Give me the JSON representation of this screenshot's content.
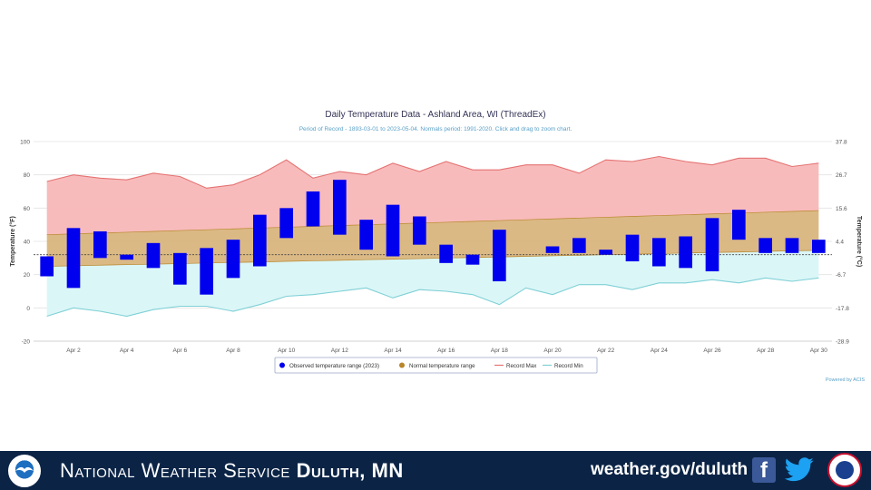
{
  "chart_data": {
    "type": "bar",
    "title": "Daily Temperature Data - Ashland Area, WI (ThreadEx)",
    "subtitle": "Period of Record - 1893-03-01 to 2023-05-04. Normals period: 1991-2020. Click and drag to zoom chart.",
    "ylabel_left": "Temperature (°F)",
    "ylabel_right": "Temperature (°C)",
    "ylim": [
      -20,
      100
    ],
    "yticks_left": [
      "100",
      "80",
      "60",
      "40",
      "20",
      "0",
      "-20"
    ],
    "yticks_right": [
      "37.8",
      "26.7",
      "15.6",
      "4.4",
      "-6.7",
      "-17.8",
      "-28.9"
    ],
    "x_tick_labels": [
      "Apr 2",
      "Apr 4",
      "Apr 6",
      "Apr 8",
      "Apr 10",
      "Apr 12",
      "Apr 14",
      "Apr 16",
      "Apr 18",
      "Apr 20",
      "Apr 22",
      "Apr 24",
      "Apr 26",
      "Apr 28",
      "Apr 30"
    ],
    "x_tick_days": [
      2,
      4,
      6,
      8,
      10,
      12,
      14,
      16,
      18,
      20,
      22,
      24,
      26,
      28,
      30
    ],
    "reference_line": 32,
    "grid": true,
    "legend_position": "bottom-center",
    "days": [
      1,
      2,
      3,
      4,
      5,
      6,
      7,
      8,
      9,
      10,
      11,
      12,
      13,
      14,
      15,
      16,
      17,
      18,
      19,
      20,
      21,
      22,
      23,
      24,
      25,
      26,
      27,
      28,
      29,
      30
    ],
    "series": [
      {
        "name": "Observed temperature range (2023)",
        "kind": "range-bar",
        "color": "#0000ee",
        "low": [
          19,
          12,
          30,
          29,
          24,
          14,
          8,
          18,
          25,
          42,
          49,
          44,
          35,
          31,
          38,
          27,
          26,
          16,
          null,
          33,
          33,
          32,
          28,
          25,
          24,
          22,
          41,
          33,
          33,
          33
        ],
        "high": [
          31,
          48,
          46,
          32,
          39,
          33,
          36,
          41,
          56,
          60,
          70,
          77,
          53,
          62,
          55,
          38,
          32,
          47,
          null,
          37,
          42,
          35,
          44,
          42,
          43,
          54,
          59,
          42,
          42,
          41
        ]
      },
      {
        "name": "Normal temperature range",
        "kind": "band",
        "color": "#c4a46a",
        "low": [
          25,
          25.3,
          25.7,
          26,
          26.3,
          26.6,
          27,
          27.3,
          27.6,
          28,
          28.3,
          28.6,
          29,
          29.3,
          29.6,
          30,
          30.3,
          30.6,
          31,
          31.3,
          31.6,
          32,
          32.3,
          32.6,
          33,
          33.3,
          33.6,
          34,
          34.3,
          34.6
        ],
        "high": [
          44,
          44.5,
          45,
          45.5,
          46,
          46.5,
          47,
          47.5,
          48,
          48.5,
          49,
          49.5,
          50,
          50.5,
          51,
          51.5,
          52,
          52.5,
          53,
          53.5,
          54,
          54.5,
          55,
          55.5,
          56,
          56.5,
          57,
          57.5,
          58,
          58.5
        ]
      },
      {
        "name": "Record Max",
        "kind": "line",
        "color": "#e57373",
        "values": [
          76,
          80,
          78,
          77,
          81,
          79,
          72,
          74,
          80,
          89,
          78,
          82,
          80,
          87,
          82,
          88,
          83,
          83,
          86,
          86,
          81,
          89,
          88,
          91,
          88,
          86,
          90,
          90,
          85,
          87
        ]
      },
      {
        "name": "Record Min",
        "kind": "line",
        "color": "#7fd0d6",
        "values": [
          -5,
          0,
          -2,
          -5,
          -1,
          1,
          1,
          -2,
          2,
          7,
          8,
          10,
          12,
          6,
          11,
          10,
          8,
          2,
          12,
          8,
          14,
          14,
          11,
          15,
          15,
          17,
          15,
          18,
          16,
          18
        ]
      }
    ],
    "legend": [
      {
        "label": "Observed temperature range (2023)",
        "color": "#0000ee"
      },
      {
        "label": "Normal temperature range",
        "color": "#b8862b"
      },
      {
        "label": "Record Max",
        "color": "#e57373"
      },
      {
        "label": "Record Min",
        "color": "#7fd0d6"
      }
    ],
    "credit": "Powered by ACIS"
  },
  "footer": {
    "org_name_prefix": "National Weather Service",
    "org_name_office": "Duluth, MN",
    "website": "weather.gov/duluth",
    "facebook_glyph": "f"
  }
}
